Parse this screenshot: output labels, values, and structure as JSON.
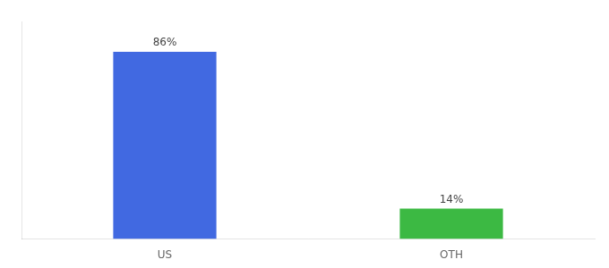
{
  "chart_data": {
    "type": "bar",
    "categories": [
      "US",
      "OTH"
    ],
    "values": [
      86,
      14
    ],
    "value_labels": [
      "86%",
      "14%"
    ],
    "colors": [
      "#4169e1",
      "#3cb943"
    ],
    "ylim": [
      0,
      100
    ],
    "grid": false,
    "data_labels": true,
    "tick_labels": "x"
  }
}
